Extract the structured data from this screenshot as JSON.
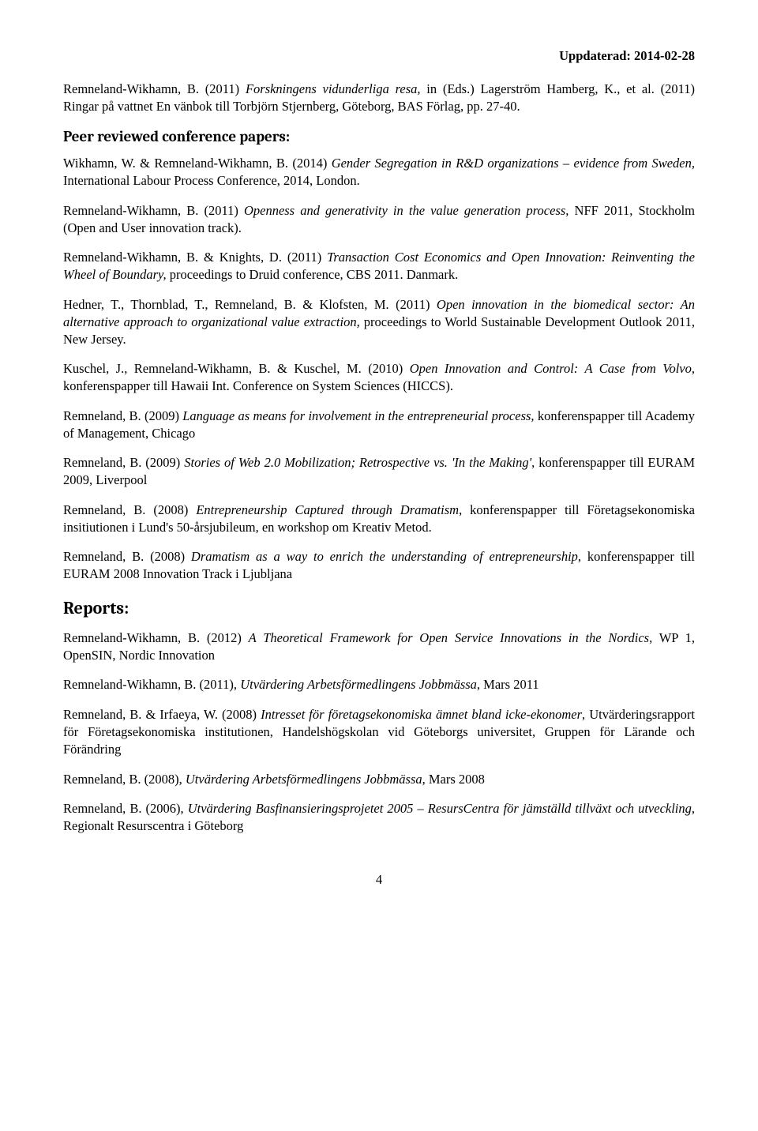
{
  "header": {
    "updated": "Uppdaterad: 2014-02-28"
  },
  "intro_entry": {
    "prefix": "Remneland-Wikhamn, B. (2011) ",
    "italic": "Forskningens vidunderliga resa,",
    "suffix": " in (Eds.) Lagerström Hamberg, K., et al. (2011) Ringar på vattnet En vänbok till Torbjörn Stjernberg, Göteborg, BAS Förlag, pp. 27-40."
  },
  "section_peer": "Peer reviewed conference papers:",
  "peer": [
    {
      "prefix": "Wikhamn, W. & Remneland-Wikhamn, B. (2014) ",
      "italic": "Gender Segregation in R&D organizations – evidence from Sweden,",
      "suffix": " International Labour Process Conference, 2014, London."
    },
    {
      "prefix": "Remneland-Wikhamn, B. (2011) ",
      "italic": "Openness and generativity in the value generation process,",
      "suffix": " NFF 2011, Stockholm (Open and User innovation track)."
    },
    {
      "prefix": "Remneland-Wikhamn, B. & Knights, D. (2011) ",
      "italic": "Transaction Cost Economics and Open Innovation: Reinventing the Wheel of Boundary,",
      "suffix": " proceedings to Druid conference, CBS 2011. Danmark."
    },
    {
      "prefix": "Hedner, T., Thornblad, T., Remneland, B. & Klofsten, M. (2011) ",
      "italic": "Open innovation in the biomedical sector: An alternative approach to organizational value extraction,",
      "suffix": " proceedings to World Sustainable Development Outlook 2011, New Jersey."
    },
    {
      "prefix": "Kuschel, J., Remneland-Wikhamn, B. & Kuschel, M. (2010) ",
      "italic": "Open Innovation and Control: A Case from Volvo,",
      "suffix": " konferenspapper till Hawaii Int. Conference on System Sciences (HICCS)."
    },
    {
      "prefix": "Remneland, B. (2009) ",
      "italic": "Language as means for involvement in the entrepreneurial process,",
      "suffix": " konferenspapper till Academy of Management, Chicago"
    },
    {
      "prefix": "Remneland, B. (2009) ",
      "italic": "Stories of Web 2.0 Mobilization; Retrospective vs. 'In the Making',",
      "suffix": " konferenspapper till EURAM 2009, Liverpool"
    },
    {
      "prefix": "Remneland, B. (2008) ",
      "italic": "Entrepreneurship Captured through Dramatism",
      "suffix": ", konferenspapper till Företagsekonomiska insitiutionen i Lund's 50-årsjubileum, en workshop om Kreativ Metod."
    },
    {
      "prefix": "Remneland, B. (2008) ",
      "italic": "Dramatism as a way to enrich the understanding of entrepreneurship",
      "suffix": ", konferenspapper till EURAM 2008 Innovation Track i Ljubljana"
    }
  ],
  "section_reports": "Reports:",
  "reports": [
    {
      "prefix": "Remneland-Wikhamn, B. (2012) ",
      "italic": "A Theoretical Framework for Open Service Innovations in the Nordics",
      "suffix": ", WP 1, OpenSIN, Nordic Innovation"
    },
    {
      "prefix": "Remneland-Wikhamn, B. (2011), ",
      "italic": "Utvärdering Arbetsförmedlingens Jobbmässa",
      "suffix": ", Mars 2011"
    },
    {
      "prefix": "Remneland, B. & Irfaeya, W. (2008) ",
      "italic": "Intresset för företagsekonomiska ämnet bland icke-ekonomer",
      "suffix": ", Utvärderingsrapport för Företagsekonomiska institutionen, Handelshögskolan vid Göteborgs universitet, Gruppen för Lärande och Förändring"
    },
    {
      "prefix": "Remneland, B. (2008), ",
      "italic": "Utvärdering Arbetsförmedlingens Jobbmässa",
      "suffix": ", Mars 2008"
    },
    {
      "prefix": "Remneland, B. (2006), ",
      "italic": "Utvärdering Basfinansieringsprojetet 2005 – ResursCentra för jämställd tillväxt och utveckling,",
      "suffix": " Regionalt Resurscentra i Göteborg"
    }
  ],
  "page_number": "4"
}
